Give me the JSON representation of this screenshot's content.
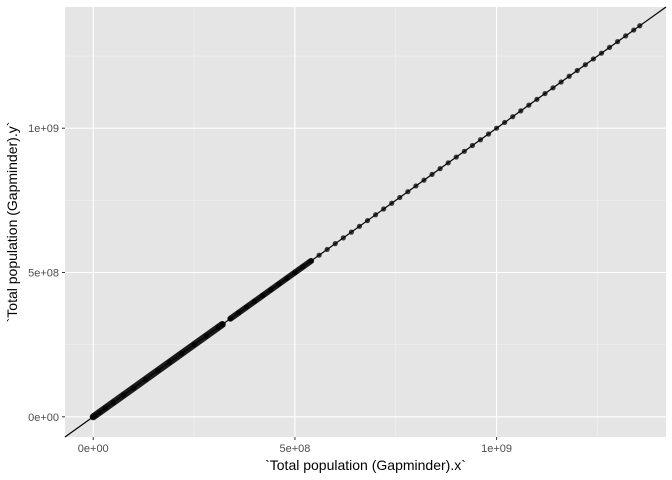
{
  "chart_data": {
    "type": "scatter",
    "title": "",
    "xlabel": "`Total population (Gapminder).x`",
    "ylabel": "`Total population (Gapminder).y`",
    "xlim": [
      -70000000,
      1420000000
    ],
    "ylim": [
      -70000000,
      1420000000
    ],
    "x_ticks": [
      {
        "value": 0,
        "label": "0e+00"
      },
      {
        "value": 500000000,
        "label": "5e+08"
      },
      {
        "value": 1000000000,
        "label": "1e+09"
      }
    ],
    "y_ticks": [
      {
        "value": 0,
        "label": "0e+00"
      },
      {
        "value": 500000000,
        "label": "5e+08"
      },
      {
        "value": 1000000000,
        "label": "1e+09"
      }
    ],
    "grid": true,
    "reference_line": {
      "type": "identity",
      "slope": 1,
      "intercept": 0
    },
    "colors": {
      "panel_background": "#e5e5e5",
      "grid_major": "#ffffff",
      "grid_minor": "#f2f2f2",
      "points": "#000000",
      "reference_line": "#000000"
    },
    "series": [
      {
        "values": [
          [
            0,
            0
          ],
          [
            5000000,
            5000000
          ],
          [
            15000000,
            15000000
          ],
          [
            30000000,
            30000000
          ],
          [
            50000000,
            50000000
          ],
          [
            75000000,
            75000000
          ],
          [
            100000000,
            100000000
          ],
          [
            130000000,
            130000000
          ],
          [
            160000000,
            160000000
          ],
          [
            190000000,
            190000000
          ],
          [
            220000000,
            220000000
          ],
          [
            250000000,
            250000000
          ],
          [
            280000000,
            280000000
          ],
          [
            310000000,
            310000000
          ],
          [
            320000000,
            320000000
          ],
          [
            340000000,
            340000000
          ],
          [
            360000000,
            360000000
          ],
          [
            380000000,
            380000000
          ],
          [
            400000000,
            400000000
          ],
          [
            420000000,
            420000000
          ],
          [
            440000000,
            440000000
          ],
          [
            460000000,
            460000000
          ],
          [
            480000000,
            480000000
          ],
          [
            500000000,
            500000000
          ],
          [
            520000000,
            520000000
          ],
          [
            540000000,
            540000000
          ],
          [
            560000000,
            560000000
          ],
          [
            580000000,
            580000000
          ],
          [
            600000000,
            600000000
          ],
          [
            620000000,
            620000000
          ],
          [
            640000000,
            640000000
          ],
          [
            660000000,
            660000000
          ],
          [
            680000000,
            680000000
          ],
          [
            700000000,
            700000000
          ],
          [
            720000000,
            720000000
          ],
          [
            740000000,
            740000000
          ],
          [
            760000000,
            760000000
          ],
          [
            780000000,
            780000000
          ],
          [
            800000000,
            800000000
          ],
          [
            820000000,
            820000000
          ],
          [
            840000000,
            840000000
          ],
          [
            860000000,
            860000000
          ],
          [
            880000000,
            880000000
          ],
          [
            900000000,
            900000000
          ],
          [
            920000000,
            920000000
          ],
          [
            940000000,
            940000000
          ],
          [
            960000000,
            960000000
          ],
          [
            980000000,
            980000000
          ],
          [
            1000000000,
            1000000000
          ],
          [
            1020000000,
            1020000000
          ],
          [
            1040000000,
            1040000000
          ],
          [
            1060000000,
            1060000000
          ],
          [
            1080000000,
            1080000000
          ],
          [
            1100000000,
            1100000000
          ],
          [
            1120000000,
            1120000000
          ],
          [
            1140000000,
            1140000000
          ],
          [
            1160000000,
            1160000000
          ],
          [
            1180000000,
            1180000000
          ],
          [
            1200000000,
            1200000000
          ],
          [
            1220000000,
            1220000000
          ],
          [
            1240000000,
            1240000000
          ],
          [
            1260000000,
            1260000000
          ],
          [
            1280000000,
            1280000000
          ],
          [
            1300000000,
            1300000000
          ],
          [
            1320000000,
            1320000000
          ],
          [
            1340000000,
            1340000000
          ],
          [
            1355000000,
            1355000000
          ]
        ]
      }
    ]
  }
}
